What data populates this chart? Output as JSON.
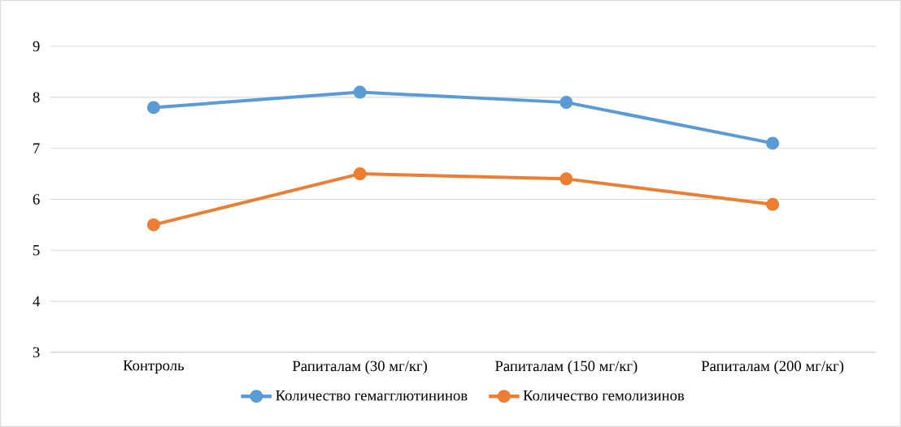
{
  "chart_data": {
    "type": "line",
    "categories": [
      "Контроль",
      "Рапиталам  (30 мг/кг)",
      "Рапиталам (150 мг/кг)",
      "Рапиталам (200 мг/кг)"
    ],
    "series": [
      {
        "name": "Количество гемагглютининов",
        "color": "#5b9bd5",
        "values": [
          7.8,
          8.1,
          7.9,
          7.1
        ]
      },
      {
        "name": "Количество гемолизинов",
        "color": "#ed7d31",
        "values": [
          5.5,
          6.5,
          6.4,
          5.9
        ]
      }
    ],
    "ylim": [
      3,
      9
    ],
    "yticks": [
      3,
      4,
      5,
      6,
      7,
      8,
      9
    ],
    "grid": "y",
    "legend": "bottom",
    "marker": "circle",
    "line_style": "solid"
  }
}
